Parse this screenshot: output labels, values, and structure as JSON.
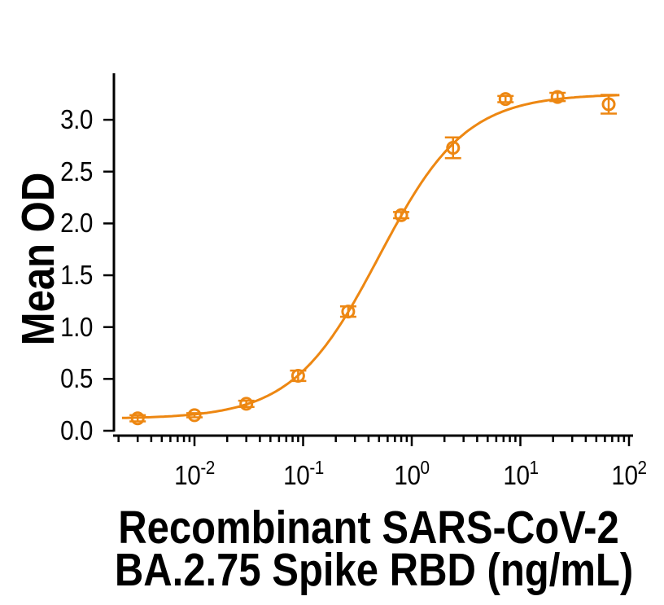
{
  "chart_data": {
    "type": "scatter",
    "title": "",
    "ylabel": "Mean OD",
    "xlabel_line1": "Recombinant SARS-CoV-2",
    "xlabel_line2": "BA.2.75 Spike RBD (ng/mL)",
    "x_scale": "log10",
    "x_unit": "ng/mL",
    "x_tick_exponents": [
      "-2",
      "-1",
      "0",
      "1",
      "2"
    ],
    "y_tick_labels": [
      "0.0",
      "0.5",
      "1.0",
      "1.5",
      "2.0",
      "2.5",
      "3.0"
    ],
    "ylim": [
      0,
      3.45
    ],
    "xlim_log10": [
      -2.74,
      2.04
    ],
    "grid": false,
    "legend": "none",
    "series": [
      {
        "name": "Mean OD",
        "marker": "open-circle",
        "error_bars": true,
        "x_ng_ml": [
          0.003,
          0.01,
          0.03,
          0.09,
          0.26,
          0.8,
          2.4,
          7.3,
          22,
          65
        ],
        "mean_od": [
          0.12,
          0.15,
          0.26,
          0.53,
          1.15,
          2.08,
          2.73,
          3.2,
          3.22,
          3.15
        ],
        "error_od": [
          0.03,
          0.02,
          0.03,
          0.05,
          0.05,
          0.03,
          0.1,
          0.03,
          0.04,
          0.09
        ]
      }
    ],
    "fit_curve": {
      "type": "4PL",
      "bottom_od": 0.115,
      "top_od": 3.25,
      "ec50_ng_ml": 0.5,
      "hill_slope": 1.09,
      "x_draw_range_ng_ml": [
        0.00215,
        85
      ]
    }
  },
  "colors": {
    "curve": "#ED8712",
    "axis": "#000000",
    "text": "#000000",
    "background": "#FFFFFF"
  }
}
